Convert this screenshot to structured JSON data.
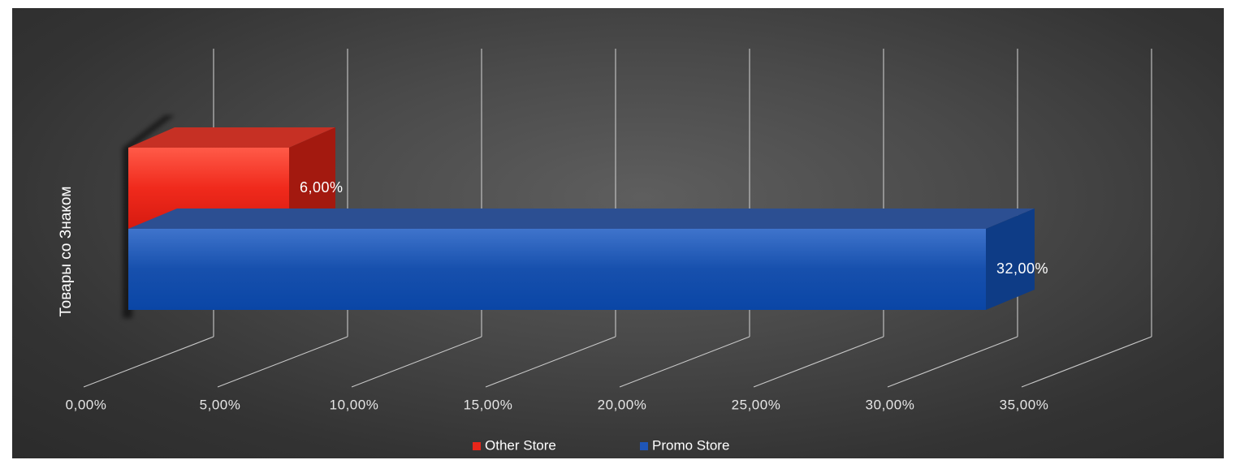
{
  "chart_data": {
    "type": "bar",
    "orientation": "horizontal-3d",
    "categories": [
      "Товары со Знаком"
    ],
    "series": [
      {
        "name": "Other Store",
        "values": [
          6.0
        ],
        "labels": [
          "6,00%"
        ],
        "color": "#e8261a"
      },
      {
        "name": "Promo Store",
        "values": [
          32.0
        ],
        "labels": [
          "32,00%"
        ],
        "color": "#1f56b8"
      }
    ],
    "xlim": [
      0,
      35
    ],
    "ticks": [
      "0,00%",
      "5,00%",
      "10,00%",
      "15,00%",
      "20,00%",
      "25,00%",
      "30,00%",
      "35,00%"
    ],
    "grid": true,
    "legend": "bottom",
    "background": "#3a3a3a"
  }
}
